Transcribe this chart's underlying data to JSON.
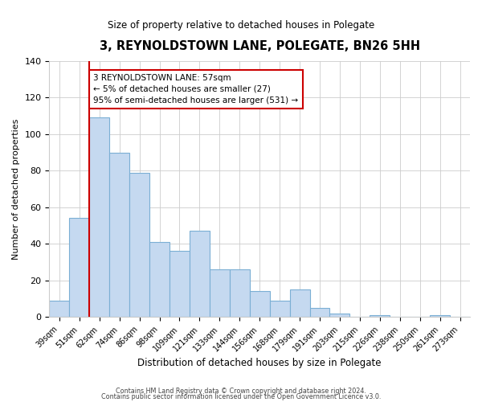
{
  "title": "3, REYNOLDSTOWN LANE, POLEGATE, BN26 5HH",
  "subtitle": "Size of property relative to detached houses in Polegate",
  "xlabel": "Distribution of detached houses by size in Polegate",
  "ylabel": "Number of detached properties",
  "bar_labels": [
    "39sqm",
    "51sqm",
    "62sqm",
    "74sqm",
    "86sqm",
    "98sqm",
    "109sqm",
    "121sqm",
    "133sqm",
    "144sqm",
    "156sqm",
    "168sqm",
    "179sqm",
    "191sqm",
    "203sqm",
    "215sqm",
    "226sqm",
    "238sqm",
    "250sqm",
    "261sqm",
    "273sqm"
  ],
  "bar_heights": [
    9,
    54,
    109,
    90,
    79,
    41,
    36,
    47,
    26,
    26,
    14,
    9,
    15,
    5,
    2,
    0,
    1,
    0,
    0,
    1,
    0
  ],
  "bar_color": "#c5d9f0",
  "bar_edge_color": "#7bafd4",
  "vline_x": 1.5,
  "vline_color": "#cc0000",
  "ylim": [
    0,
    140
  ],
  "yticks": [
    0,
    20,
    40,
    60,
    80,
    100,
    120,
    140
  ],
  "annotation_line1": "3 REYNOLDSTOWN LANE: 57sqm",
  "annotation_line2": "← 5% of detached houses are smaller (27)",
  "annotation_line3": "95% of semi-detached houses are larger (531) →",
  "footer1": "Contains HM Land Registry data © Crown copyright and database right 2024.",
  "footer2": "Contains public sector information licensed under the Open Government Licence v3.0."
}
